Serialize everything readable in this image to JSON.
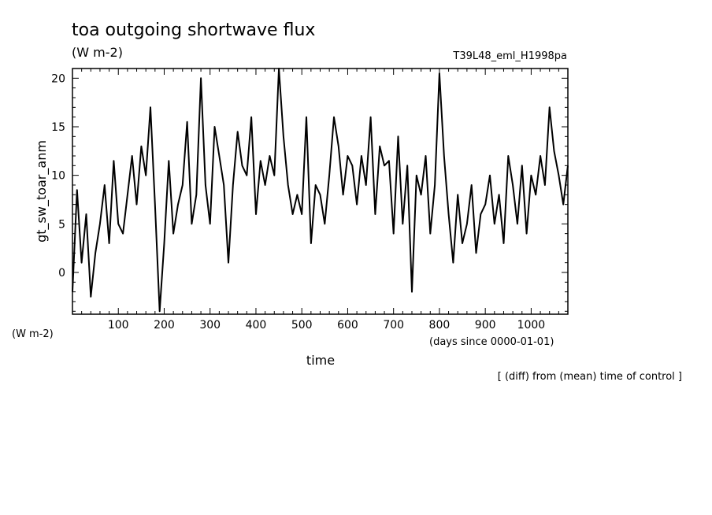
{
  "chart_data": {
    "type": "line",
    "title": "toa outgoing shortwave flux",
    "subtitle": "(W m-2)",
    "experiment": "T39L48_eml_H1998pa",
    "ylabel": "gt_sw_toar_anm",
    "yunits": "(W m-2)",
    "xlabel": "time",
    "xunits": "(days since 0000-01-01)",
    "note": "[ (diff) from (mean) time of control ]",
    "xlim": [
      0,
      1080
    ],
    "ylim": [
      -4.3,
      21
    ],
    "xticks": [
      100,
      200,
      300,
      400,
      500,
      600,
      700,
      800,
      900,
      1000
    ],
    "yticks": [
      0,
      5,
      10,
      15,
      20
    ],
    "grid": false,
    "series": [
      {
        "x": [
          0,
          10,
          20,
          30,
          40,
          50,
          60,
          70,
          80,
          90,
          100,
          110,
          120,
          130,
          140,
          150,
          160,
          170,
          180,
          190,
          200,
          210,
          220,
          230,
          240,
          250,
          260,
          270,
          280,
          290,
          300,
          310,
          320,
          330,
          340,
          350,
          360,
          370,
          380,
          390,
          400,
          410,
          420,
          430,
          440,
          450,
          460,
          470,
          480,
          490,
          500,
          510,
          520,
          530,
          540,
          550,
          560,
          570,
          580,
          590,
          600,
          610,
          620,
          630,
          640,
          650,
          660,
          670,
          680,
          690,
          700,
          710,
          720,
          730,
          740,
          750,
          760,
          770,
          780,
          790,
          800,
          810,
          820,
          830,
          840,
          850,
          860,
          870,
          880,
          890,
          900,
          910,
          920,
          930,
          940,
          950,
          960,
          970,
          980,
          990,
          1000,
          1010,
          1020,
          1030,
          1040,
          1050,
          1060,
          1070,
          1080
        ],
        "values": [
          -2,
          8.5,
          1,
          6,
          -2.5,
          2,
          5,
          9,
          3,
          11.5,
          5,
          4,
          8,
          12,
          7,
          13,
          10,
          17,
          7,
          -4,
          3,
          11.5,
          4,
          7,
          9,
          15.5,
          5,
          8,
          20,
          9,
          5,
          15,
          12,
          9,
          1,
          9,
          14.5,
          11,
          10,
          16,
          6,
          11.5,
          9,
          12,
          10,
          21,
          14,
          9,
          6,
          8,
          6,
          16,
          3,
          9,
          8,
          5,
          10,
          16,
          13,
          8,
          12,
          11,
          7,
          12,
          9,
          16,
          6,
          13,
          11,
          11.5,
          4,
          14,
          5,
          11,
          -2,
          10,
          8,
          12,
          4,
          9,
          20.5,
          12,
          6,
          1,
          8,
          3,
          5,
          9,
          2,
          6,
          7,
          10,
          5,
          8,
          3,
          12,
          9,
          5,
          11,
          4,
          10,
          8,
          12,
          9,
          17,
          12.5,
          10,
          7,
          11
        ]
      }
    ]
  }
}
